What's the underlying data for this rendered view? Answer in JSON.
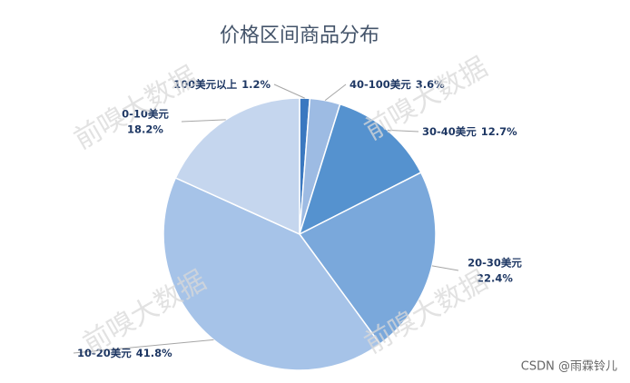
{
  "chart_data": {
    "type": "pie",
    "title": "价格区间商品分布",
    "categories": [
      "100美元以上",
      "40-100美元",
      "30-40美元",
      "20-30美元",
      "10-20美元",
      "0-10美元"
    ],
    "values": [
      1.2,
      3.6,
      12.7,
      22.4,
      41.8,
      18.2
    ],
    "value_labels": [
      "1.2%",
      "3.6%",
      "12.7%",
      "22.4%",
      "41.8%",
      "18.2%"
    ],
    "colors": [
      "#3a78c0",
      "#9dbbe3",
      "#5592cf",
      "#7aa8db",
      "#a6c3e8",
      "#c5d6ee"
    ],
    "annotations": [
      "前嗅大数据",
      "CSDN @雨霖铃儿"
    ]
  }
}
